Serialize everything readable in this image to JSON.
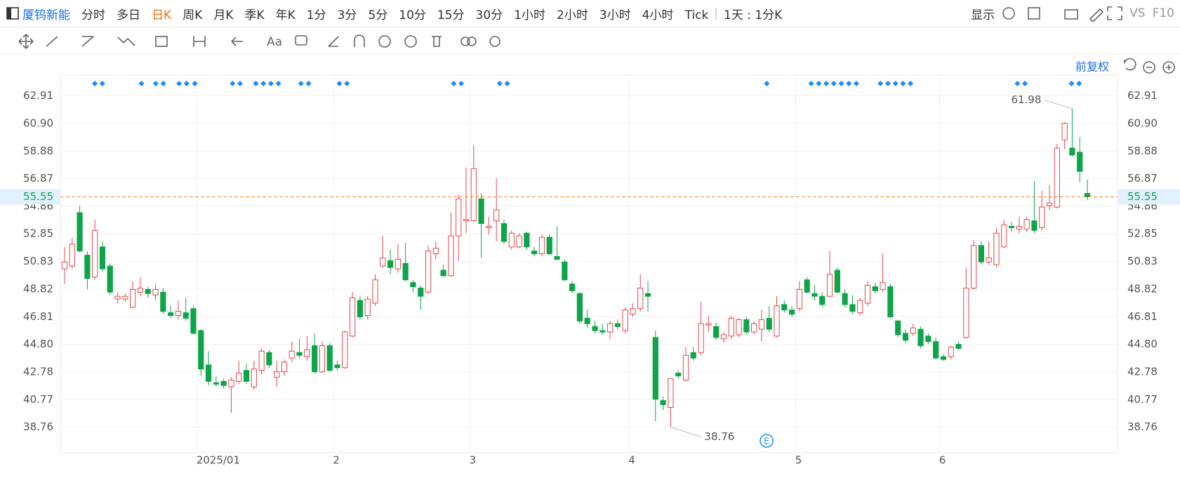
{
  "toolbar": {
    "stock": "厦钨新能",
    "periods": [
      "分时",
      "多日",
      "日K",
      "周K",
      "月K",
      "季K",
      "年K",
      "1分",
      "3分",
      "5分",
      "10分",
      "15分",
      "30分",
      "1小时",
      "2小时",
      "3小时",
      "4小时",
      "Tick"
    ],
    "range": "1天 : 1分K",
    "display": "显示",
    "vs": "VS",
    "f10": "F10"
  },
  "chart_data": {
    "type": "candlestick",
    "adjust": "前复权",
    "event": "E",
    "up_color": "#e5484d",
    "down_color": "#0ea54a",
    "last_color": "#f08a24",
    "grid": true,
    "ylim": [
      36.9,
      64.01
    ],
    "yticks": [
      62.91,
      {
        "value": 60.9,
        "label": "60.90"
      },
      58.88,
      56.87,
      54.86,
      52.85,
      50.83,
      48.82,
      46.81,
      {
        "value": 44.8,
        "label": "44.80"
      },
      42.78,
      40.77,
      38.76
    ],
    "xticks": [
      {
        "value": 18,
        "label": "2025/01"
      },
      {
        "value": 36,
        "label": "2"
      },
      {
        "value": 54,
        "label": "3"
      },
      {
        "value": 75,
        "label": "4"
      },
      {
        "value": 97,
        "label": "5"
      },
      {
        "value": 116,
        "label": "6"
      }
    ],
    "open": [
      50.3,
      50.5,
      54.4,
      51.3,
      49.7,
      51.9,
      50.5,
      48.1,
      48.1,
      47.5,
      48.6,
      48.8,
      48.4,
      48.6,
      47.1,
      46.9,
      47.1,
      47.4,
      45.8,
      43.3,
      42.0,
      42.1,
      41.7,
      42.1,
      42.9,
      41.7,
      42.9,
      44.2,
      42.4,
      42.8,
      43.8,
      44.2,
      43.9,
      44.7,
      42.8,
      44.7,
      43.3,
      43.1,
      45.4,
      48.0,
      46.9,
      47.8,
      50.5,
      50.9,
      50.3,
      50.7,
      49.3,
      48.9,
      48.6,
      51.4,
      50.2,
      49.8,
      52.7,
      53.8,
      53.8,
      55.4,
      53.3,
      53.8,
      53.6,
      51.9,
      51.9,
      52.9,
      51.6,
      51.4,
      52.6,
      51.2,
      50.8,
      49.2,
      48.5,
      46.7,
      46.1,
      45.8,
      45.7,
      46.3,
      45.8,
      47.0,
      47.4,
      48.5,
      45.3,
      40.7,
      40.2,
      42.7,
      42.2,
      44.2,
      44.2,
      46.2,
      46.1,
      45.2,
      45.4,
      45.5,
      46.6,
      45.7,
      45.9,
      46.7,
      45.4,
      47.7,
      47.3,
      47.4,
      49.5,
      48.5,
      48.3,
      48.3,
      50.2,
      48.5,
      47.7,
      47.1,
      47.8,
      49.0,
      48.8,
      49.0,
      46.5,
      45.6,
      45.6,
      45.9,
      45.4,
      45.0,
      43.9,
      43.9,
      44.8,
      45.3,
      48.9,
      52.0,
      50.8,
      50.6,
      51.9,
      53.4,
      53.2,
      53.2,
      53.8,
      53.3,
      54.9,
      54.8,
      59.7,
      59.1,
      58.8,
      55.8
    ],
    "high": [
      51.9,
      52.6,
      54.9,
      51.6,
      53.9,
      52.3,
      50.7,
      48.6,
      48.5,
      49.4,
      49.7,
      49.0,
      49.2,
      48.9,
      47.6,
      48.0,
      48.2,
      47.6,
      45.9,
      44.3,
      42.5,
      42.3,
      42.4,
      43.6,
      43.4,
      43.6,
      44.5,
      44.4,
      43.6,
      43.7,
      45.0,
      45.2,
      45.4,
      45.6,
      45.0,
      44.9,
      43.6,
      45.8,
      48.6,
      48.3,
      48.3,
      49.9,
      52.7,
      51.7,
      52.1,
      52.2,
      49.5,
      49.1,
      52.0,
      52.3,
      50.6,
      54.4,
      55.7,
      57.7,
      59.3,
      55.8,
      54.1,
      56.9,
      53.9,
      53.1,
      52.9,
      53.0,
      51.9,
      52.8,
      52.8,
      53.4,
      51.0,
      49.4,
      48.6,
      47.3,
      46.5,
      46.3,
      46.5,
      46.6,
      47.5,
      47.8,
      49.9,
      49.4,
      45.8,
      41.0,
      42.3,
      42.9,
      44.6,
      44.6,
      47.9,
      46.9,
      46.4,
      45.7,
      46.9,
      46.7,
      46.8,
      46.5,
      47.3,
      47.6,
      48.3,
      48.0,
      47.6,
      49.4,
      49.7,
      49.1,
      48.6,
      51.6,
      50.4,
      48.8,
      48.4,
      48.2,
      49.4,
      49.3,
      51.4,
      49.2,
      46.6,
      45.9,
      46.3,
      46.1,
      45.6,
      45.3,
      44.1,
      44.7,
      45.0,
      50.4,
      52.4,
      52.3,
      52.3,
      53.3,
      53.9,
      53.7,
      54.1,
      54.1,
      56.7,
      56.0,
      56.4,
      59.4,
      61.0,
      61.98,
      59.9,
      56.8
    ],
    "low": [
      49.2,
      50.3,
      51.5,
      48.8,
      49.5,
      50.1,
      48.4,
      47.8,
      47.9,
      47.4,
      48.3,
      48.2,
      48.0,
      47.0,
      46.7,
      46.6,
      46.5,
      45.5,
      42.5,
      41.8,
      41.7,
      41.6,
      39.8,
      41.9,
      41.9,
      41.5,
      42.6,
      43.1,
      41.7,
      42.5,
      43.5,
      43.8,
      43.6,
      42.7,
      42.7,
      42.8,
      42.9,
      43.0,
      45.3,
      46.6,
      46.6,
      47.6,
      50.4,
      49.9,
      50.0,
      49.4,
      48.6,
      47.3,
      48.5,
      51.0,
      49.7,
      49.7,
      50.9,
      52.9,
      53.7,
      51.1,
      52.8,
      52.3,
      52.1,
      51.7,
      51.8,
      51.7,
      51.2,
      51.2,
      51.3,
      50.9,
      49.4,
      48.5,
      46.3,
      46.0,
      45.6,
      45.5,
      45.2,
      45.9,
      45.6,
      46.8,
      47.2,
      47.2,
      39.2,
      40.0,
      38.76,
      42.3,
      42.1,
      43.6,
      44.0,
      45.7,
      45.1,
      44.9,
      45.2,
      45.3,
      45.5,
      45.5,
      45.0,
      45.7,
      45.3,
      47.1,
      46.8,
      47.2,
      48.5,
      48.0,
      47.5,
      48.2,
      48.5,
      47.5,
      47.0,
      46.9,
      47.6,
      48.5,
      48.6,
      46.7,
      45.3,
      44.9,
      45.4,
      44.5,
      44.8,
      43.7,
      43.6,
      43.7,
      44.4,
      45.2,
      48.8,
      50.6,
      50.6,
      50.4,
      51.8,
      53.0,
      52.9,
      53.0,
      52.9,
      53.1,
      54.6,
      54.7,
      59.0,
      58.5,
      56.6,
      55.3
    ],
    "close": [
      50.8,
      52.1,
      51.6,
      49.6,
      53.1,
      50.3,
      48.6,
      48.3,
      48.3,
      48.8,
      48.9,
      48.5,
      48.8,
      47.2,
      46.9,
      47.2,
      46.7,
      45.6,
      43.0,
      42.1,
      41.9,
      41.8,
      42.2,
      42.7,
      42.1,
      43.0,
      44.3,
      43.3,
      42.8,
      43.5,
      44.3,
      44.0,
      44.4,
      42.8,
      44.7,
      42.9,
      43.1,
      45.7,
      48.2,
      46.8,
      48.1,
      49.5,
      51.1,
      50.4,
      51.0,
      49.5,
      49.0,
      48.3,
      51.6,
      51.8,
      49.8,
      52.7,
      55.4,
      53.9,
      57.6,
      53.6,
      53.4,
      54.6,
      52.3,
      52.9,
      52.7,
      51.9,
      51.4,
      52.6,
      51.4,
      51.0,
      49.5,
      48.7,
      46.5,
      46.3,
      45.8,
      45.7,
      46.3,
      46.1,
      47.3,
      47.4,
      48.9,
      48.3,
      40.8,
      40.4,
      42.3,
      42.5,
      44.0,
      43.8,
      46.3,
      46.3,
      45.3,
      45.5,
      46.7,
      46.6,
      45.7,
      46.3,
      46.6,
      45.9,
      47.6,
      47.3,
      47.0,
      48.8,
      48.6,
      48.3,
      47.7,
      49.9,
      48.6,
      47.7,
      47.2,
      48.0,
      49.1,
      48.7,
      49.3,
      46.8,
      45.5,
      45.1,
      46.0,
      44.7,
      45.0,
      43.8,
      43.7,
      44.6,
      44.5,
      48.9,
      52.0,
      50.8,
      51.1,
      52.9,
      53.5,
      53.3,
      53.4,
      53.9,
      53.1,
      54.8,
      55.1,
      59.1,
      60.9,
      58.6,
      57.4,
      55.55
    ]
  }
}
